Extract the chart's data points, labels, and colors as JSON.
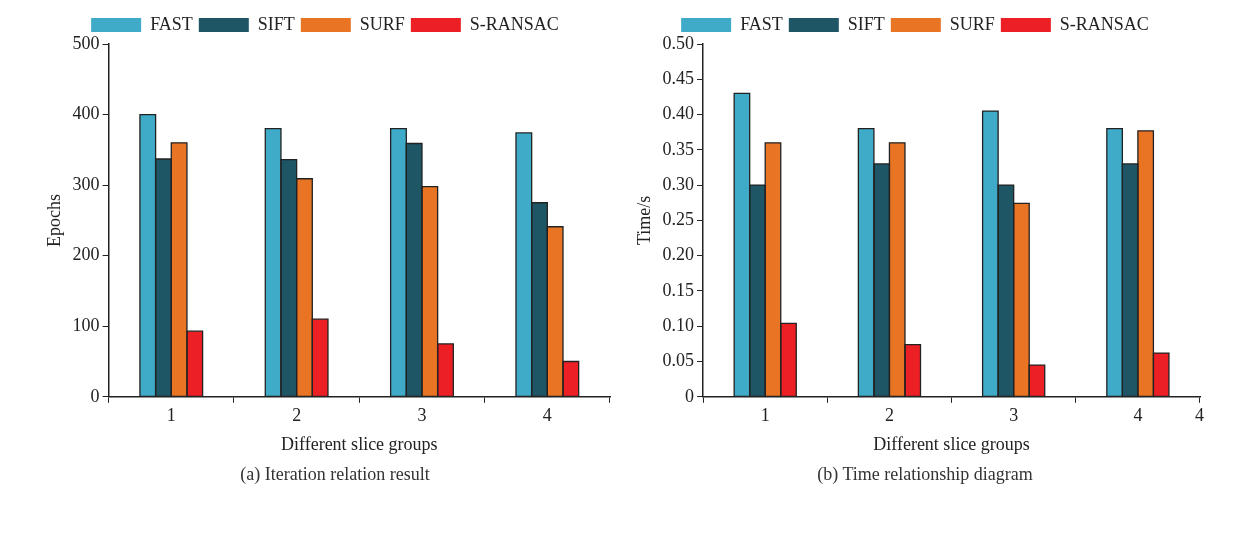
{
  "chart_data": [
    {
      "type": "bar",
      "title": "(a) Iteration relation result",
      "xlabel": "Different slice groups",
      "ylabel": "Epochs",
      "categories": [
        "1",
        "2",
        "3",
        "4"
      ],
      "series": [
        {
          "name": "FAST",
          "color": "#3fabc8",
          "values": [
            400,
            380,
            380,
            374
          ]
        },
        {
          "name": "SIFT",
          "color": "#1f5666",
          "values": [
            337,
            336,
            359,
            275
          ]
        },
        {
          "name": "SURF",
          "color": "#e87424",
          "values": [
            360,
            309,
            298,
            241
          ]
        },
        {
          "name": "S-RANSAC",
          "color": "#ec1f24",
          "values": [
            93,
            110,
            75,
            50
          ]
        }
      ],
      "ylim": [
        0,
        500
      ],
      "yticks": [
        0,
        100,
        200,
        300,
        400,
        500
      ],
      "grid": false,
      "legend": "top"
    },
    {
      "type": "bar",
      "title": "(b) Time relationship diagram",
      "xlabel": "Different slice groups",
      "ylabel": "Time/s",
      "categories": [
        "1",
        "2",
        "3",
        "4"
      ],
      "series": [
        {
          "name": "FAST",
          "color": "#3fabc8",
          "values": [
            0.43,
            0.38,
            0.405,
            0.38
          ]
        },
        {
          "name": "SIFT",
          "color": "#1f5666",
          "values": [
            0.3,
            0.33,
            0.3,
            0.33
          ]
        },
        {
          "name": "SURF",
          "color": "#e87424",
          "values": [
            0.36,
            0.36,
            0.274,
            0.377
          ]
        },
        {
          "name": "S-RANSAC",
          "color": "#ec1f24",
          "values": [
            0.104,
            0.074,
            0.045,
            0.062
          ]
        }
      ],
      "ylim": [
        0,
        0.5
      ],
      "yticks": [
        0,
        {
          "value": 0.05,
          "label": "0.05"
        },
        {
          "value": 0.1,
          "label": "0.10"
        },
        0.15,
        {
          "value": 0.2,
          "label": "0.20"
        },
        0.25,
        {
          "value": 0.3,
          "label": "0.30"
        },
        0.35,
        {
          "value": 0.4,
          "label": "0.40"
        },
        0.45,
        {
          "value": 0.5,
          "label": "0.50"
        }
      ],
      "annotations": [
        "4"
      ],
      "grid": false,
      "legend": "top"
    }
  ]
}
